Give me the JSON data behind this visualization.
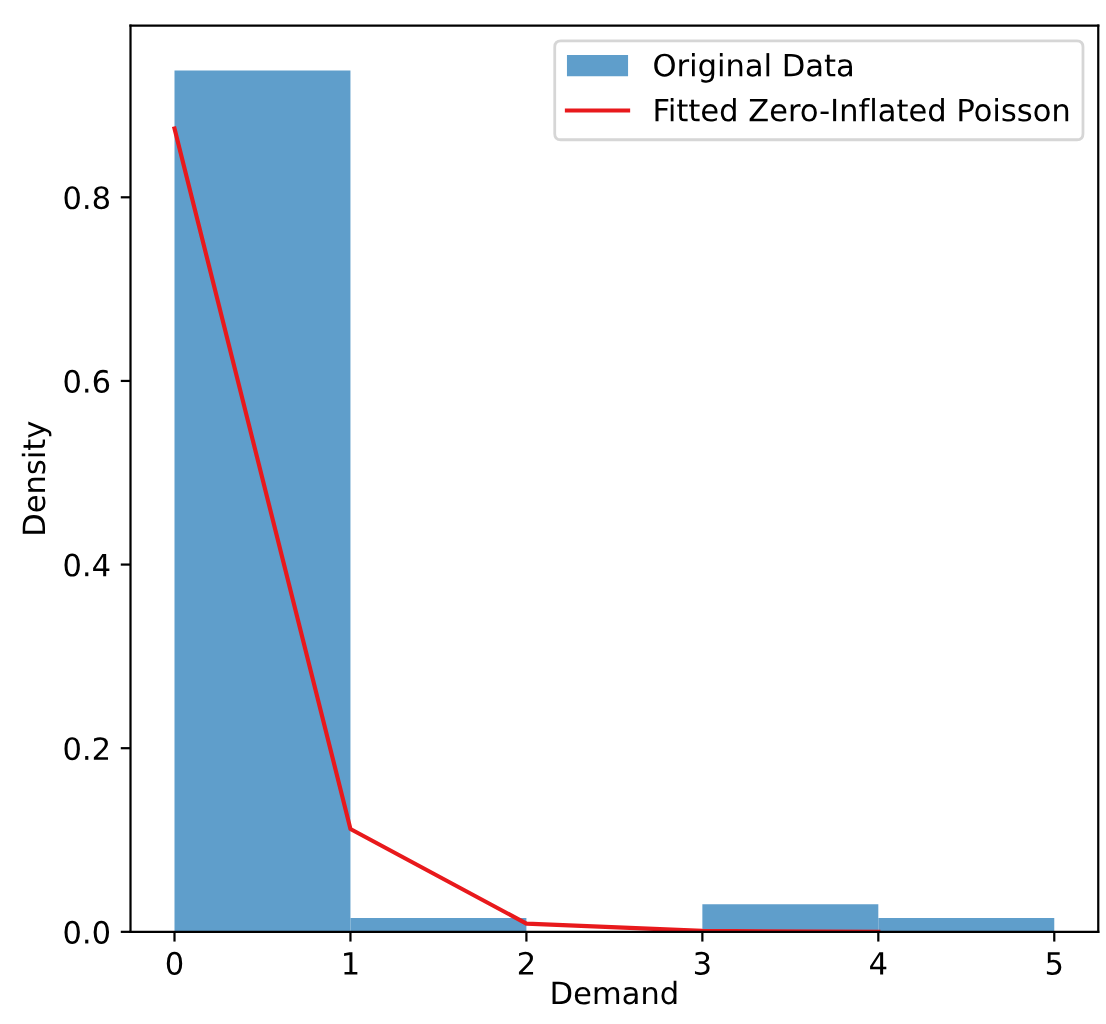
{
  "chart_data": {
    "type": "histogram",
    "xlabel": "Demand",
    "ylabel": "Density",
    "bins": [
      0,
      1,
      2,
      3,
      4,
      5
    ],
    "series": [
      {
        "name": "Original Data",
        "color": "#5f9ecb",
        "values": [
          0.938,
          0.015,
          0,
          0.03,
          0.015
        ]
      },
      {
        "name": "Fitted Zero-Inflated Poisson",
        "type": "line",
        "color": "#e8191c",
        "x": [
          0,
          1,
          2,
          3,
          4
        ],
        "values": [
          0.875,
          0.112,
          0.009,
          0.001,
          0
        ]
      }
    ],
    "xlim": [
      -0.25,
      5.25
    ],
    "xticks": [
      0,
      1,
      2,
      3,
      4,
      5
    ],
    "ylim": [
      0,
      0.987
    ],
    "yticks": [
      {
        "value": 0,
        "label": "0.0"
      },
      0.2,
      0.4,
      0.6,
      0.8
    ],
    "legend": "top right"
  }
}
